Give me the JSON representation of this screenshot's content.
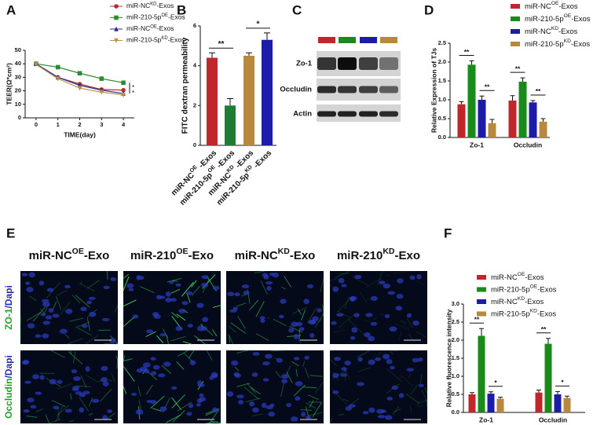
{
  "chart_data": [
    {
      "panel_label": "A",
      "type": "line",
      "x": [
        0,
        1,
        2,
        3,
        4
      ],
      "xlim": [
        -0.5,
        4.5
      ],
      "xticks": [
        0,
        1,
        2,
        3,
        4
      ],
      "ylim": [
        0,
        50
      ],
      "yticks": [
        0,
        10,
        20,
        30,
        40,
        50
      ],
      "x_label": "TIME(day)",
      "y_label": "TEER(Ω*cm²)",
      "series": [
        {
          "name": [
            "miR-NC",
            "KD",
            "-Exos"
          ],
          "color": "#b03030",
          "marker": "circle",
          "values": [
            40,
            30,
            25,
            21,
            20.5
          ]
        },
        {
          "name": [
            "miR-210-5p",
            "OE",
            "-Exos"
          ],
          "color": "#2e8b2e",
          "marker": "square",
          "values": [
            40,
            37.5,
            33,
            29,
            26
          ]
        },
        {
          "name": [
            "miR-NC",
            "OE",
            "-Exos"
          ],
          "color": "#2a2a9a",
          "marker": "triangle",
          "values": [
            40,
            30,
            24,
            20.5,
            18
          ]
        },
        {
          "name": [
            "miR-210-5p",
            "KD",
            "-Exos"
          ],
          "color": "#b8944a",
          "marker": "triangle-down",
          "values": [
            39.5,
            29,
            22,
            19,
            17
          ]
        }
      ],
      "annotations": [
        {
          "text": "*"
        },
        {
          "text": "*"
        }
      ]
    },
    {
      "panel_label": "B",
      "type": "bar",
      "categories": [
        [
          "miR-NC",
          "OE",
          " -Exos"
        ],
        [
          "miR-210-5p",
          "OE",
          " -Exos"
        ],
        [
          "miR-NC",
          "KD",
          " -Exos"
        ],
        [
          "miR-210-5p",
          "KD",
          " -Exos"
        ]
      ],
      "values": [
        4.4,
        2.0,
        4.5,
        5.3
      ],
      "errors": [
        0.25,
        0.35,
        0.15,
        0.35
      ],
      "colors": [
        "#c0272d",
        "#1e7d32",
        "#b8893c",
        "#1c1ca8"
      ],
      "ylim": [
        0,
        6
      ],
      "yticks": [
        0,
        2,
        4,
        6
      ],
      "y_label": "FITC dextran permeability",
      "annotations": [
        {
          "text": "**",
          "from": 0,
          "to": 1
        },
        {
          "text": "*",
          "from": 2,
          "to": 3
        }
      ]
    },
    {
      "panel_label": "D",
      "type": "grouped_bar",
      "categories": [
        "Zo-1",
        "Occludin"
      ],
      "series": [
        {
          "name": [
            "miR-NC",
            "OE",
            "-Exos"
          ],
          "color": "#c0272d",
          "values": [
            0.88,
            0.98
          ],
          "errors": [
            0.07,
            0.13
          ]
        },
        {
          "name": [
            "miR-210-5p",
            "OE",
            "-Exos"
          ],
          "color": "#1a8a1a",
          "values": [
            1.93,
            1.48
          ],
          "errors": [
            0.1,
            0.1
          ]
        },
        {
          "name": [
            "miR-NC",
            "KD",
            "-Exos"
          ],
          "color": "#1c1ca8",
          "values": [
            1.0,
            0.93
          ],
          "errors": [
            0.1,
            0.05
          ]
        },
        {
          "name": [
            "miR-210-5p",
            "KD",
            "-Exos"
          ],
          "color": "#b8893c",
          "values": [
            0.38,
            0.42
          ],
          "errors": [
            0.1,
            0.08
          ]
        }
      ],
      "ylim": [
        0,
        2.5
      ],
      "yticks": [
        {
          "value": 0,
          "label": "0.0"
        },
        0.5,
        {
          "value": 1,
          "label": "1.0"
        },
        1.5,
        {
          "value": 2,
          "label": "2.0"
        },
        2.5
      ],
      "y_label": "Relative Expression of TJs",
      "annotations": [
        {
          "text": "**",
          "category": 0,
          "from": 0,
          "to": 1
        },
        {
          "text": "**",
          "category": 0,
          "from": 2,
          "to": 3
        },
        {
          "text": "**",
          "category": 1,
          "from": 0,
          "to": 1
        },
        {
          "text": "**",
          "category": 1,
          "from": 2,
          "to": 3
        }
      ]
    },
    {
      "panel_label": "F",
      "type": "grouped_bar",
      "categories": [
        "Zo-1",
        "Occludin"
      ],
      "series": [
        {
          "name": [
            "miR-NC",
            "OE",
            "-Exos"
          ],
          "color": "#c0272d",
          "values": [
            0.5,
            0.55
          ],
          "errors": [
            0.05,
            0.07
          ]
        },
        {
          "name": [
            "miR-210-5p",
            "OE",
            "-Exos"
          ],
          "color": "#1a8a1a",
          "values": [
            2.12,
            1.9
          ],
          "errors": [
            0.2,
            0.15
          ]
        },
        {
          "name": [
            "miR-NC",
            "KD",
            "-Exos"
          ],
          "color": "#1c1ca8",
          "values": [
            0.52,
            0.5
          ],
          "errors": [
            0.05,
            0.08
          ]
        },
        {
          "name": [
            "miR-210-5p",
            "KD",
            "-Exos"
          ],
          "color": "#b8893c",
          "values": [
            0.38,
            0.4
          ],
          "errors": [
            0.04,
            0.05
          ]
        }
      ],
      "ylim": [
        0,
        3
      ],
      "yticks": [
        {
          "value": 0,
          "label": "0.0"
        },
        0.5,
        {
          "value": 1,
          "label": "1.0"
        },
        1.5,
        {
          "value": 2,
          "label": "2.0"
        },
        2.5,
        {
          "value": 3,
          "label": "3.0"
        }
      ],
      "y_label": "Relative fluorescence intensity",
      "annotations": [
        {
          "text": "**",
          "category": 0,
          "from": 0,
          "to": 1
        },
        {
          "text": "*",
          "category": 0,
          "from": 2,
          "to": 3
        },
        {
          "text": "**",
          "category": 1,
          "from": 0,
          "to": 1
        },
        {
          "text": "*",
          "category": 1,
          "from": 2,
          "to": 3
        }
      ]
    }
  ],
  "blot": {
    "panel_label": "C",
    "lane_colors": [
      "#c0272d",
      "#1a8a1a",
      "#1c1ca8",
      "#b8893c"
    ],
    "bands": [
      "Zo-1",
      "Occludin",
      "Actin"
    ]
  },
  "micrographs": {
    "panel_label": "E",
    "columns": [
      [
        "miR-NC",
        "OE",
        "-Exo"
      ],
      [
        "miR-210",
        "OE",
        "-Exo"
      ],
      [
        "miR-NC",
        "KD",
        "-Exo"
      ],
      [
        "miR-210",
        "KD",
        "-Exo"
      ]
    ],
    "rows": [
      {
        "text": [
          "ZO-1",
          "/Dapi"
        ],
        "colors": [
          "#22a022",
          "#2b2bb0"
        ]
      },
      {
        "text": [
          "Occludin",
          "/Dapi"
        ],
        "colors": [
          "#22a022",
          "#2b2bb0"
        ]
      }
    ]
  }
}
